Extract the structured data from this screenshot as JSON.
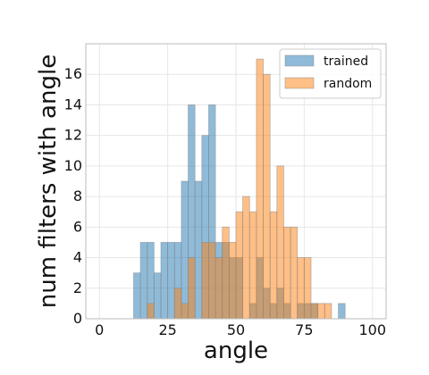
{
  "chart_data": {
    "type": "bar",
    "title": "",
    "xlabel": "angle",
    "ylabel": "num filters with angle",
    "xlim": [
      -5,
      105
    ],
    "ylim": [
      0,
      18
    ],
    "xticks": [
      0,
      25,
      50,
      75,
      100
    ],
    "yticks": [
      0,
      2,
      4,
      6,
      8,
      10,
      12,
      14,
      16
    ],
    "grid": true,
    "legend_position": "top-right",
    "bin_width": 2.5,
    "series": [
      {
        "name": "trained",
        "color": "#1f77b4",
        "bins": [
          {
            "x": 12.5,
            "value": 3
          },
          {
            "x": 15,
            "value": 5
          },
          {
            "x": 17.5,
            "value": 5
          },
          {
            "x": 20,
            "value": 3
          },
          {
            "x": 22.5,
            "value": 5
          },
          {
            "x": 25,
            "value": 5
          },
          {
            "x": 27.5,
            "value": 5
          },
          {
            "x": 30,
            "value": 9
          },
          {
            "x": 32.5,
            "value": 14
          },
          {
            "x": 35,
            "value": 9
          },
          {
            "x": 37.5,
            "value": 12
          },
          {
            "x": 40,
            "value": 14
          },
          {
            "x": 42.5,
            "value": 5
          },
          {
            "x": 45,
            "value": 5
          },
          {
            "x": 47.5,
            "value": 4
          },
          {
            "x": 50,
            "value": 4
          },
          {
            "x": 55,
            "value": 1
          },
          {
            "x": 57.5,
            "value": 4
          },
          {
            "x": 60,
            "value": 2
          },
          {
            "x": 62.5,
            "value": 1
          },
          {
            "x": 65,
            "value": 2
          },
          {
            "x": 67.5,
            "value": 1
          },
          {
            "x": 72.5,
            "value": 1
          },
          {
            "x": 75,
            "value": 1
          },
          {
            "x": 77.5,
            "value": 1
          },
          {
            "x": 87.5,
            "value": 1
          }
        ]
      },
      {
        "name": "random",
        "color": "#ff7f0e",
        "bins": [
          {
            "x": 17.5,
            "value": 1
          },
          {
            "x": 27.5,
            "value": 2
          },
          {
            "x": 30,
            "value": 1
          },
          {
            "x": 32.5,
            "value": 4
          },
          {
            "x": 37.5,
            "value": 5
          },
          {
            "x": 40,
            "value": 5
          },
          {
            "x": 42.5,
            "value": 4
          },
          {
            "x": 45,
            "value": 6
          },
          {
            "x": 47.5,
            "value": 5
          },
          {
            "x": 50,
            "value": 7
          },
          {
            "x": 52.5,
            "value": 8
          },
          {
            "x": 55,
            "value": 7
          },
          {
            "x": 57.5,
            "value": 17
          },
          {
            "x": 60,
            "value": 16
          },
          {
            "x": 62.5,
            "value": 7
          },
          {
            "x": 65,
            "value": 10
          },
          {
            "x": 67.5,
            "value": 6
          },
          {
            "x": 70,
            "value": 6
          },
          {
            "x": 72.5,
            "value": 4
          },
          {
            "x": 75,
            "value": 4
          },
          {
            "x": 77.5,
            "value": 1
          },
          {
            "x": 80,
            "value": 1
          },
          {
            "x": 82.5,
            "value": 1
          }
        ]
      }
    ]
  }
}
